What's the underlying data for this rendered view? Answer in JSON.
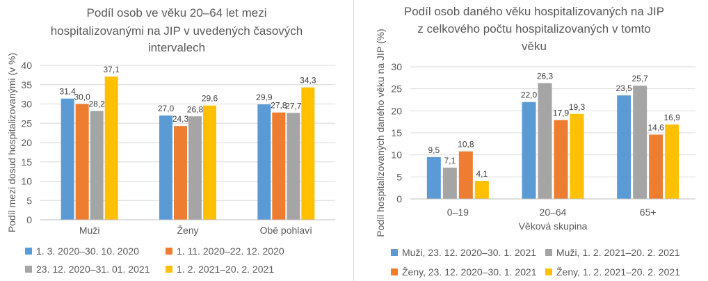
{
  "chart_data": [
    {
      "type": "bar",
      "title": "Podíl osob ve věku 20–64 let mezi hospitalizovanými na JIP v uvedených časových intervalech",
      "title_lines": [
        "Podíl osob ve věku 20–64 let mezi",
        "hospitalizovanými na JIP v uvedených časových",
        "intervalech"
      ],
      "xlabel": "",
      "ylabel": "Podíl mezi dosud hospitalizovanými (v %)",
      "ylim": [
        0,
        40
      ],
      "yticks": [
        "0",
        "5",
        "10",
        "15",
        "20",
        "25",
        "30",
        "35",
        "40"
      ],
      "grid": true,
      "legend_position": "bottom",
      "categories": [
        "Muži",
        "Ženy",
        "Obě pohlaví"
      ],
      "series": [
        {
          "name": "1. 3. 2020–30. 10. 2020",
          "color": "#5b9bd5",
          "values": [
            31.4,
            27.0,
            29.9
          ],
          "labels": [
            "31,4",
            "27,0",
            "29,9"
          ]
        },
        {
          "name": "1. 11. 2020–22. 12. 2020",
          "color": "#ed7d31",
          "values": [
            30.0,
            24.3,
            27.8
          ],
          "labels": [
            "30,0",
            "24,3",
            "27,8"
          ]
        },
        {
          "name": "23. 12. 2020–31. 01. 2021",
          "color": "#a5a5a5",
          "values": [
            28.2,
            26.8,
            27.7
          ],
          "labels": [
            "28,2",
            "26,8",
            "27,7"
          ]
        },
        {
          "name": "1. 2. 2021–20. 2. 2021",
          "color": "#ffc000",
          "values": [
            37.1,
            29.6,
            34.3
          ],
          "labels": [
            "37,1",
            "29,6",
            "34,3"
          ]
        }
      ]
    },
    {
      "type": "bar",
      "title": "Podíl osob daného věku hospitalizovaných na JIP z celkového počtu hospitalizovaných v tomto věku",
      "title_lines": [
        "Podíl osob daného věku hospitalizovaných na JIP",
        "z celkového počtu hospitalizovaných v tomto",
        "věku"
      ],
      "xlabel": "Věková skupina",
      "ylabel": "Podíl hospitalizovaných daného věku na JIP (%)",
      "ylim": [
        0,
        30
      ],
      "yticks": [
        "0",
        "5",
        "10",
        "15",
        "20",
        "25",
        "30"
      ],
      "grid": true,
      "legend_position": "bottom",
      "categories": [
        "0–19",
        "20–64",
        "65+"
      ],
      "series": [
        {
          "name": "Muži, 23. 12. 2020–30. 1. 2021",
          "color": "#5b9bd5",
          "values": [
            9.5,
            22.0,
            23.5
          ],
          "labels": [
            "9,5",
            "22,0",
            "23,5"
          ]
        },
        {
          "name": "Muži, 1. 2. 2021–20. 2. 2021",
          "color": "#a5a5a5",
          "values": [
            7.1,
            26.3,
            25.7
          ],
          "labels": [
            "7,1",
            "26,3",
            "25,7"
          ]
        },
        {
          "name": "Ženy, 23. 12. 2020–30. 1. 2021",
          "color": "#ed7d31",
          "values": [
            10.8,
            17.9,
            14.6
          ],
          "labels": [
            "10,8",
            "17,9",
            "14,6"
          ]
        },
        {
          "name": "Ženy, 1. 2. 2021–20. 2. 2021",
          "color": "#ffc000",
          "values": [
            4.1,
            19.3,
            16.9
          ],
          "labels": [
            "4,1",
            "19,3",
            "16,9"
          ]
        }
      ]
    }
  ]
}
